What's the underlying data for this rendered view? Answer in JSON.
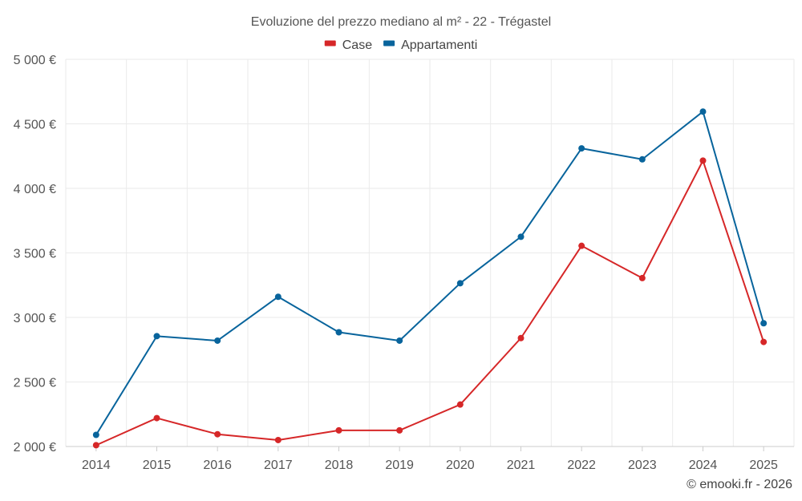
{
  "chart_data": {
    "type": "line",
    "title": "Evoluzione del prezzo mediano al m² - 22 - Trégastel",
    "categories": [
      "2014",
      "2015",
      "2016",
      "2017",
      "2018",
      "2019",
      "2020",
      "2021",
      "2022",
      "2023",
      "2024",
      "2025"
    ],
    "series": [
      {
        "name": "Case",
        "color": "#d62728",
        "values": [
          2010,
          2220,
          2095,
          2050,
          2125,
          2125,
          2325,
          2840,
          3555,
          3305,
          4215,
          2810
        ]
      },
      {
        "name": "Appartamenti",
        "color": "#08649c",
        "values": [
          2090,
          2855,
          2820,
          3160,
          2885,
          2820,
          3265,
          3625,
          4310,
          4225,
          4595,
          2955
        ]
      }
    ],
    "ylim": [
      2000,
      5000
    ],
    "y_ticks": [
      2000,
      2500,
      3000,
      3500,
      4000,
      4500,
      5000
    ],
    "y_tick_labels": [
      "2 000 €",
      "2 500 €",
      "3 000 €",
      "3 500 €",
      "4 000 €",
      "4 500 €",
      "5 000 €"
    ],
    "xlabel": "",
    "ylabel": "",
    "grid": true,
    "legend_position": "top-center"
  },
  "credit": "© emooki.fr - 2026"
}
